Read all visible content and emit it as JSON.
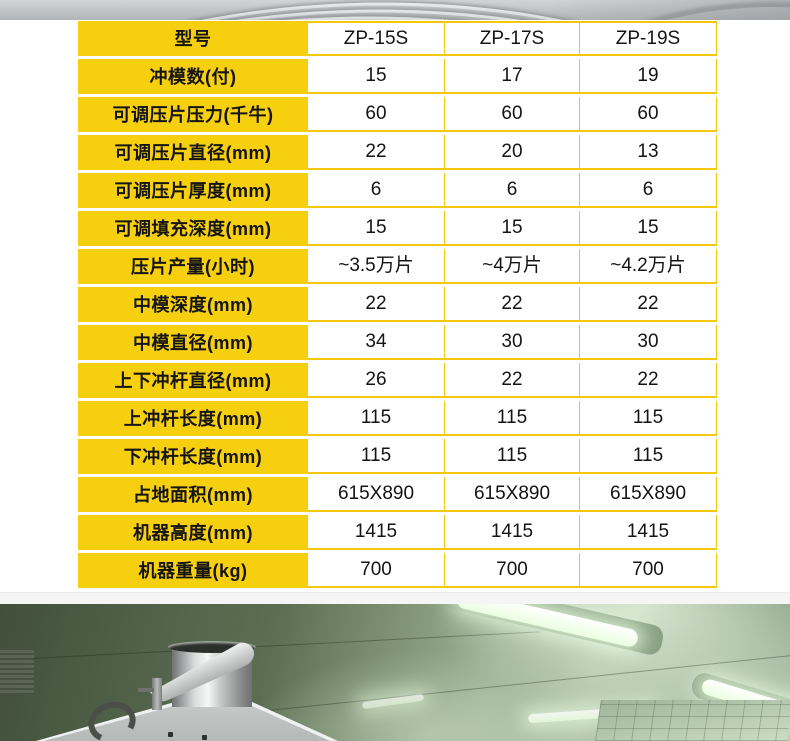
{
  "colors": {
    "accent_yellow": "#f6cf0e",
    "table_line_yellow": "#f2c70e",
    "text_dark": "#141414",
    "cleanroom_green": "#5c6e51",
    "machine_steel": "#c4c8c7",
    "top_strip_gray": "#b2b5b7"
  },
  "table": {
    "header_label": "型号",
    "models": [
      "ZP-15S",
      "ZP-17S",
      "ZP-19S"
    ],
    "rows": [
      {
        "label": "冲模数(付)",
        "values": [
          "15",
          "17",
          "19"
        ]
      },
      {
        "label": "可调压片压力(千牛)",
        "values": [
          "60",
          "60",
          "60"
        ]
      },
      {
        "label": "可调压片直径(mm)",
        "values": [
          "22",
          "20",
          "13"
        ]
      },
      {
        "label": "可调压片厚度(mm)",
        "values": [
          "6",
          "6",
          "6"
        ]
      },
      {
        "label": "可调填充深度(mm)",
        "values": [
          "15",
          "15",
          "15"
        ]
      },
      {
        "label": "压片产量(小时)",
        "values": [
          "~3.5万片",
          "~4万片",
          "~4.2万片"
        ]
      },
      {
        "label": "中模深度(mm)",
        "values": [
          "22",
          "22",
          "22"
        ]
      },
      {
        "label": "中模直径(mm)",
        "values": [
          "34",
          "30",
          "30"
        ]
      },
      {
        "label": "上下冲杆直径(mm)",
        "values": [
          "26",
          "22",
          "22"
        ]
      },
      {
        "label": "上冲杆长度(mm)",
        "values": [
          "115",
          "115",
          "115"
        ]
      },
      {
        "label": "下冲杆长度(mm)",
        "values": [
          "115",
          "115",
          "115"
        ]
      },
      {
        "label": "占地面积(mm)",
        "values": [
          "615X890",
          "615X890",
          "615X890"
        ]
      },
      {
        "label": "机器高度(mm)",
        "values": [
          "1415",
          "1415",
          "1415"
        ]
      },
      {
        "label": "机器重量(kg)",
        "values": [
          "700",
          "700",
          "700"
        ]
      }
    ]
  }
}
